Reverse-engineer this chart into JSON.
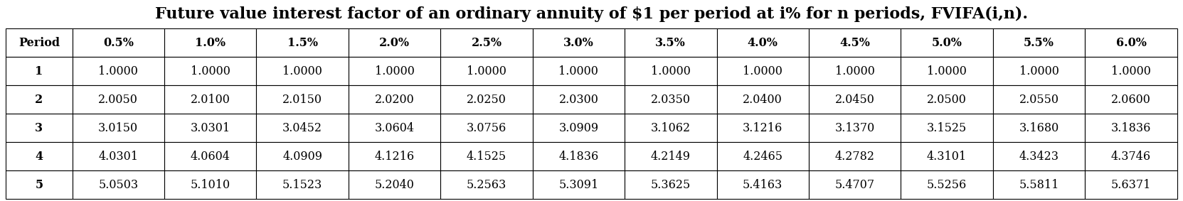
{
  "title": "Future value interest factor of an ordinary annuity of $1 per period at i% for n periods, FVIFA(i,n).",
  "columns": [
    "Period",
    "0.5%",
    "1.0%",
    "1.5%",
    "2.0%",
    "2.5%",
    "3.0%",
    "3.5%",
    "4.0%",
    "4.5%",
    "5.0%",
    "5.5%",
    "6.0%"
  ],
  "rows": [
    [
      "1",
      "1.0000",
      "1.0000",
      "1.0000",
      "1.0000",
      "1.0000",
      "1.0000",
      "1.0000",
      "1.0000",
      "1.0000",
      "1.0000",
      "1.0000",
      "1.0000"
    ],
    [
      "2",
      "2.0050",
      "2.0100",
      "2.0150",
      "2.0200",
      "2.0250",
      "2.0300",
      "2.0350",
      "2.0400",
      "2.0450",
      "2.0500",
      "2.0550",
      "2.0600"
    ],
    [
      "3",
      "3.0150",
      "3.0301",
      "3.0452",
      "3.0604",
      "3.0756",
      "3.0909",
      "3.1062",
      "3.1216",
      "3.1370",
      "3.1525",
      "3.1680",
      "3.1836"
    ],
    [
      "4",
      "4.0301",
      "4.0604",
      "4.0909",
      "4.1216",
      "4.1525",
      "4.1836",
      "4.2149",
      "4.2465",
      "4.2782",
      "4.3101",
      "4.3423",
      "4.3746"
    ],
    [
      "5",
      "5.0503",
      "5.1010",
      "5.1523",
      "5.2040",
      "5.2563",
      "5.3091",
      "5.3625",
      "5.4163",
      "5.4707",
      "5.5256",
      "5.5811",
      "5.6371"
    ]
  ],
  "title_fontsize": 16,
  "header_fontsize": 11.5,
  "cell_fontsize": 11.5,
  "background_color": "#ffffff",
  "title_color": "#000000",
  "border_color": "#000000",
  "text_color": "#000000",
  "fig_width": 16.63,
  "fig_height": 2.83,
  "dpi": 100
}
